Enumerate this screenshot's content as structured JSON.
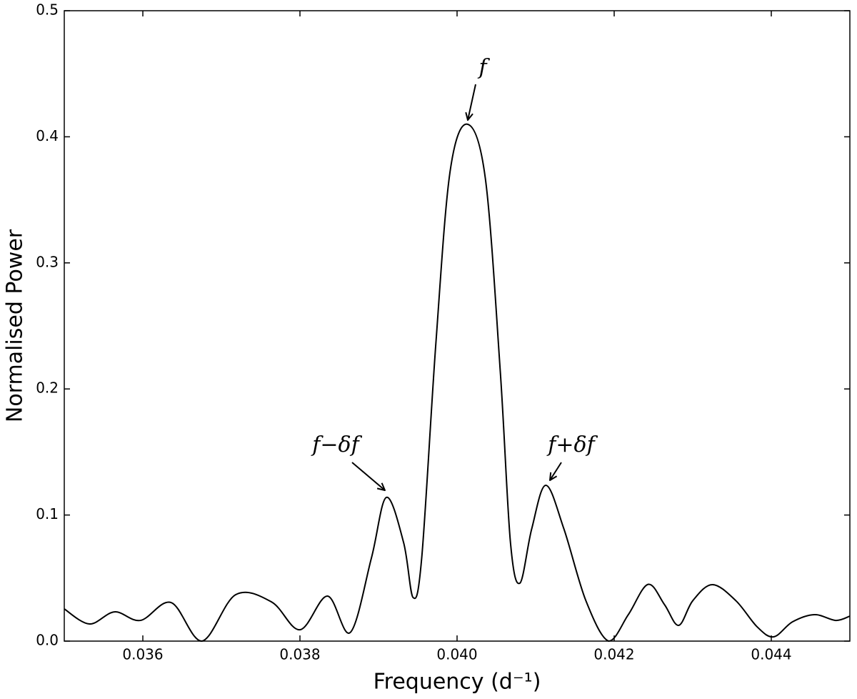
{
  "chart_data": {
    "type": "line",
    "x_label": "Frequency (d⁻¹)",
    "y_label": "Normalised Power",
    "annotations": [
      "f",
      "f−δf",
      "f+δf"
    ],
    "x": [
      0.035,
      0.03532,
      0.03564,
      0.03597,
      0.03636,
      0.03675,
      0.03718,
      0.03764,
      0.038,
      0.03835,
      0.03864,
      0.03891,
      0.0391,
      0.03932,
      0.03944,
      0.03955,
      0.03973,
      0.03991,
      0.04013,
      0.04036,
      0.04055,
      0.04068,
      0.0408,
      0.04095,
      0.04113,
      0.04136,
      0.04164,
      0.04193,
      0.04218,
      0.04243,
      0.04264,
      0.04282,
      0.043,
      0.04325,
      0.04355,
      0.04382,
      0.04403,
      0.04427,
      0.04455,
      0.04482,
      0.045
    ],
    "series": [
      {
        "color": "#000000",
        "values": [
          0.0255,
          0.0136,
          0.0232,
          0.0164,
          0.0306,
          0.0,
          0.0368,
          0.031,
          0.009,
          0.0357,
          0.0068,
          0.066,
          0.114,
          0.078,
          0.0346,
          0.066,
          0.236,
          0.372,
          0.41,
          0.367,
          0.214,
          0.078,
          0.046,
          0.089,
          0.1236,
          0.089,
          0.032,
          0.0,
          0.021,
          0.045,
          0.029,
          0.0125,
          0.032,
          0.0448,
          0.032,
          0.0113,
          0.0034,
          0.0153,
          0.021,
          0.0164,
          0.0198
        ]
      }
    ],
    "xlim": [
      0.035,
      0.045
    ],
    "xticks": [
      0.036,
      0.038,
      {
        "value": 0.04,
        "label": "0.040"
      },
      0.042,
      0.044
    ],
    "ylim": [
      0,
      0.5
    ],
    "yticks": [
      {
        "value": 0,
        "label": "0.0"
      },
      0.1,
      0.2,
      0.3,
      0.4,
      0.5
    ],
    "grid": false
  }
}
